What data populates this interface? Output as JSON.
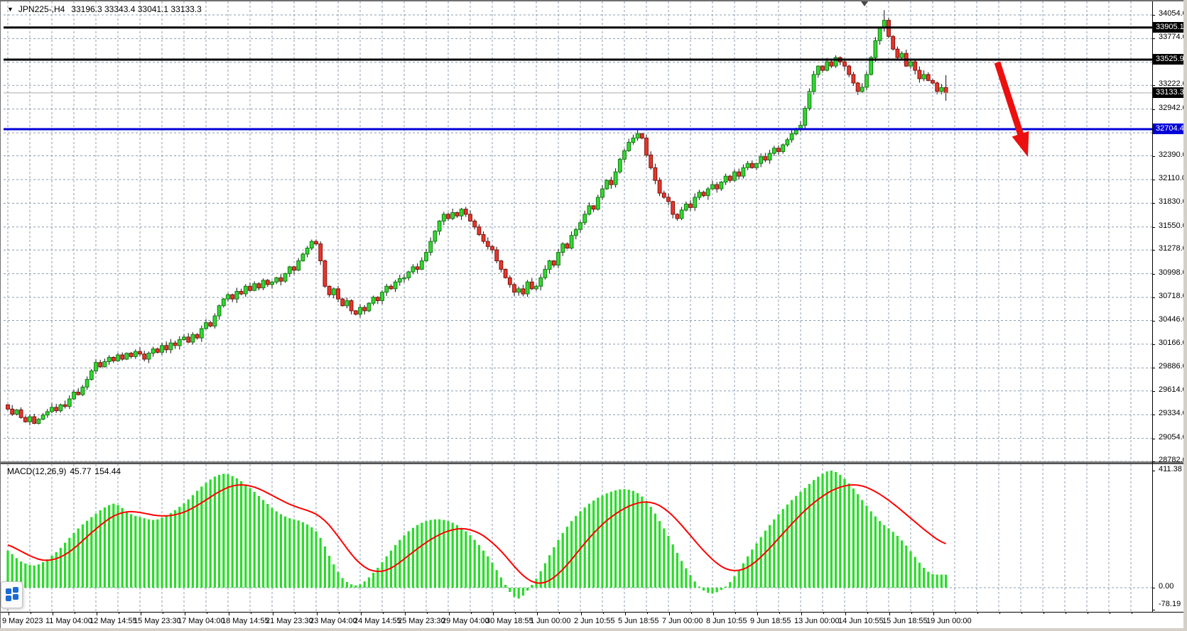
{
  "window": {
    "symbol_dropdown_icon": "▼",
    "title": "JPN225-,H4",
    "title_ohlc": "33196.3 33343.4 33041.1 33133.3"
  },
  "colors": {
    "candle_up": "#32d732",
    "candle_up_border": "#127a12",
    "candle_down": "#ea352b",
    "candle_down_border": "#7c120c",
    "macd_histogram": "#28dc28",
    "macd_signal": "#ff0000",
    "level_black": "#000000",
    "level_blue": "#0000d8",
    "arrow_red": "#ec0f0f",
    "grid": "#8b9cb1"
  },
  "chart_data": {
    "type": "candlestick",
    "symbol": "JPN225-",
    "timeframe": "H4",
    "last_bar": {
      "open": 33196.3,
      "high": 33343.4,
      "low": 33041.1,
      "close": 33133.3
    },
    "price_axis": {
      "ylim": [
        28782.0,
        34230.0
      ],
      "ticks": [
        "34054.0",
        "33774.0",
        "33494.0",
        "33222.0",
        "32942.0",
        "32662.0",
        "32390.0",
        "32110.0",
        "31830.0",
        "31550.0",
        "31278.0",
        "30998.0",
        "30718.0",
        "30446.0",
        "30166.0",
        "29886.0",
        "29614.0",
        "29334.0",
        "29054.0",
        "28782.0"
      ]
    },
    "badges": [
      {
        "text": "33905.1",
        "price": 33905.1,
        "bg": "#000000",
        "name": "resistance-badge-33905"
      },
      {
        "text": "33525.9",
        "price": 33525.9,
        "bg": "#000000",
        "name": "resistance-badge-33525"
      },
      {
        "text": "33133.3",
        "price": 33133.3,
        "bg": "#000000",
        "name": "current-price-badge"
      },
      {
        "text": "32704.4",
        "price": 32704.4,
        "bg": "#0000d8",
        "name": "support-badge-32704"
      }
    ],
    "levels": [
      {
        "price": 33905.1,
        "color": "#000000",
        "width": 3,
        "name": "resistance-line-33905"
      },
      {
        "price": 33525.9,
        "color": "#000000",
        "width": 3,
        "name": "resistance-line-33525"
      },
      {
        "price": 32704.4,
        "color": "#0000d8",
        "width": 3,
        "name": "support-line-32704"
      },
      {
        "price": 33133.3,
        "color": "#ababab",
        "width": 1,
        "name": "current-price-line"
      }
    ],
    "time_axis": {
      "labels": [
        "9 May 2023",
        "11 May 04:00",
        "12 May 14:55",
        "15 May 23:30",
        "17 May 04:00",
        "18 May 14:55",
        "21 May 23:30",
        "23 May 04:00",
        "24 May 14:55",
        "25 May 23:30",
        "29 May 04:00",
        "30 May 18:55",
        "1 Jun 00:00",
        "2 Jun 10:55",
        "5 Jun 18:55",
        "7 Jun 00:00",
        "8 Jun 10:55",
        "9 Jun 18:55",
        "13 Jun 00:00",
        "14 Jun 10:55",
        "15 Jun 18:55",
        "19 Jun 00:00"
      ]
    },
    "candles": {
      "first_open": 29450,
      "up_color": "#32d732",
      "up_border": "#127a12",
      "down_color": "#ea352b",
      "down_border": "#7c120c",
      "high_overrides": {
        "199": 34110
      },
      "closes": [
        29400,
        29340,
        29390,
        29300,
        29250,
        29310,
        29230,
        29280,
        29330,
        29370,
        29420,
        29380,
        29450,
        29430,
        29520,
        29600,
        29570,
        29660,
        29750,
        29850,
        29950,
        29900,
        29960,
        30010,
        29970,
        30040,
        29990,
        30060,
        30020,
        30080,
        30050,
        29990,
        30060,
        30110,
        30070,
        30150,
        30100,
        30180,
        30150,
        30220,
        30250,
        30190,
        30280,
        30240,
        30350,
        30420,
        30380,
        30500,
        30620,
        30700,
        30750,
        30700,
        30790,
        30760,
        30850,
        30800,
        30880,
        30830,
        30920,
        30870,
        30900,
        30950,
        30910,
        31000,
        31080,
        31040,
        31150,
        31230,
        31300,
        31380,
        31350,
        31150,
        30850,
        30750,
        30820,
        30700,
        30620,
        30680,
        30560,
        30520,
        30600,
        30560,
        30650,
        30720,
        30680,
        30780,
        30850,
        30820,
        30900,
        30940,
        30950,
        31020,
        31080,
        31050,
        31150,
        31250,
        31380,
        31500,
        31620,
        31700,
        31650,
        31720,
        31680,
        31760,
        31700,
        31620,
        31550,
        31460,
        31380,
        31320,
        31280,
        31150,
        31050,
        30950,
        30870,
        30780,
        30820,
        30760,
        30900,
        30820,
        30850,
        30950,
        31050,
        31150,
        31100,
        31250,
        31350,
        31300,
        31450,
        31520,
        31600,
        31700,
        31800,
        31760,
        31900,
        32000,
        32100,
        32050,
        32200,
        32350,
        32450,
        32550,
        32600,
        32650,
        32600,
        32400,
        32250,
        32100,
        31950,
        31900,
        31850,
        31700,
        31650,
        31750,
        31820,
        31780,
        31900,
        31960,
        31920,
        32000,
        32050,
        32000,
        32080,
        32150,
        32100,
        32200,
        32150,
        32250,
        32300,
        32250,
        32300,
        32380,
        32340,
        32420,
        32480,
        32440,
        32520,
        32580,
        32650,
        32700,
        32750,
        32950,
        33150,
        33350,
        33450,
        33400,
        33500,
        33450,
        33550,
        33500,
        33450,
        33350,
        33250,
        33150,
        33200,
        33350,
        33550,
        33750,
        33900,
        33990,
        33800,
        33650,
        33550,
        33600,
        33450,
        33500,
        33400,
        33300,
        33350,
        33280,
        33250,
        33150,
        33196.3,
        33133.3
      ]
    },
    "macd": {
      "title": "MACD(12,26,9)",
      "value_main": "45.77",
      "value_signal": "154.44",
      "scale_max": "411.38",
      "scale_zero": "0.00",
      "scale_min": "-78.19",
      "histogram_color": "#28dc28",
      "signal_color": "#ff0000",
      "histogram": [
        130,
        118,
        104,
        92,
        85,
        80,
        78,
        82,
        90,
        100,
        112,
        125,
        140,
        158,
        175,
        192,
        208,
        222,
        235,
        248,
        260,
        272,
        282,
        290,
        295,
        290,
        280,
        268,
        258,
        252,
        248,
        244,
        240,
        238,
        240,
        246,
        254,
        262,
        272,
        284,
        296,
        310,
        325,
        340,
        355,
        368,
        380,
        390,
        396,
        400,
        398,
        392,
        384,
        374,
        362,
        350,
        336,
        322,
        308,
        294,
        280,
        268,
        258,
        250,
        244,
        240,
        236,
        230,
        222,
        212,
        198,
        175,
        145,
        112,
        82,
        55,
        34,
        20,
        12,
        8,
        12,
        22,
        36,
        52,
        70,
        90,
        110,
        130,
        150,
        168,
        184,
        198,
        210,
        220,
        228,
        234,
        238,
        240,
        240,
        238,
        234,
        228,
        220,
        210,
        198,
        184,
        168,
        150,
        130,
        110,
        88,
        62,
        36,
        10,
        -15,
        -32,
        -38,
        -28,
        -10,
        10,
        32,
        58,
        86,
        114,
        142,
        168,
        192,
        214,
        234,
        252,
        268,
        282,
        295,
        306,
        316,
        324,
        331,
        337,
        342,
        345,
        346,
        344,
        340,
        332,
        320,
        304,
        284,
        260,
        234,
        208,
        182,
        152,
        122,
        94,
        68,
        44,
        22,
        4,
        -10,
        -18,
        -20,
        -16,
        -8,
        4,
        20,
        40,
        62,
        86,
        110,
        134,
        156,
        178,
        200,
        220,
        240,
        258,
        276,
        292,
        308,
        322,
        336,
        350,
        364,
        378,
        390,
        400,
        408,
        411,
        406,
        396,
        382,
        366,
        348,
        328,
        308,
        288,
        268,
        250,
        234,
        220,
        208,
        196,
        182,
        166,
        148,
        128,
        108,
        88,
        70,
        56,
        48,
        46,
        46,
        45.77
      ],
      "signal": [
        150,
        144,
        136,
        128,
        120,
        112,
        106,
        100,
        97,
        96,
        98,
        102,
        108,
        116,
        126,
        138,
        151,
        165,
        179,
        193,
        206,
        219,
        231,
        242,
        251,
        258,
        263,
        266,
        267,
        266,
        264,
        261,
        258,
        255,
        253,
        252,
        252,
        253,
        256,
        260,
        265,
        272,
        280,
        289,
        298,
        308,
        318,
        328,
        337,
        345,
        352,
        357,
        360,
        361,
        360,
        357,
        353,
        347,
        340,
        332,
        324,
        316,
        308,
        300,
        293,
        287,
        281,
        276,
        271,
        265,
        258,
        248,
        235,
        219,
        200,
        180,
        159,
        138,
        118,
        100,
        85,
        73,
        64,
        59,
        57,
        58,
        62,
        69,
        78,
        89,
        101,
        113,
        125,
        137,
        148,
        159,
        169,
        178,
        186,
        193,
        199,
        203,
        206,
        207,
        206,
        203,
        198,
        191,
        182,
        171,
        158,
        144,
        128,
        111,
        93,
        75,
        58,
        43,
        31,
        22,
        17,
        16,
        19,
        26,
        36,
        49,
        64,
        81,
        99,
        118,
        137,
        156,
        174,
        191,
        207,
        222,
        236,
        248,
        259,
        269,
        278,
        286,
        292,
        297,
        300,
        301,
        299,
        295,
        288,
        278,
        266,
        252,
        236,
        219,
        201,
        183,
        165,
        147,
        130,
        114,
        99,
        86,
        75,
        67,
        62,
        60,
        61,
        65,
        72,
        82,
        94,
        108,
        123,
        139,
        156,
        173,
        190,
        207,
        224,
        240,
        256,
        271,
        285,
        298,
        310,
        321,
        331,
        340,
        347,
        353,
        357,
        360,
        361,
        360,
        357,
        352,
        345,
        337,
        328,
        318,
        307,
        295,
        283,
        270,
        257,
        244,
        231,
        218,
        205,
        193,
        181,
        170,
        161,
        154.44
      ]
    },
    "annotation_arrow": {
      "from": [
        1404,
        88
      ],
      "to": [
        1447,
        221
      ],
      "color": "#ec0f0f"
    }
  }
}
